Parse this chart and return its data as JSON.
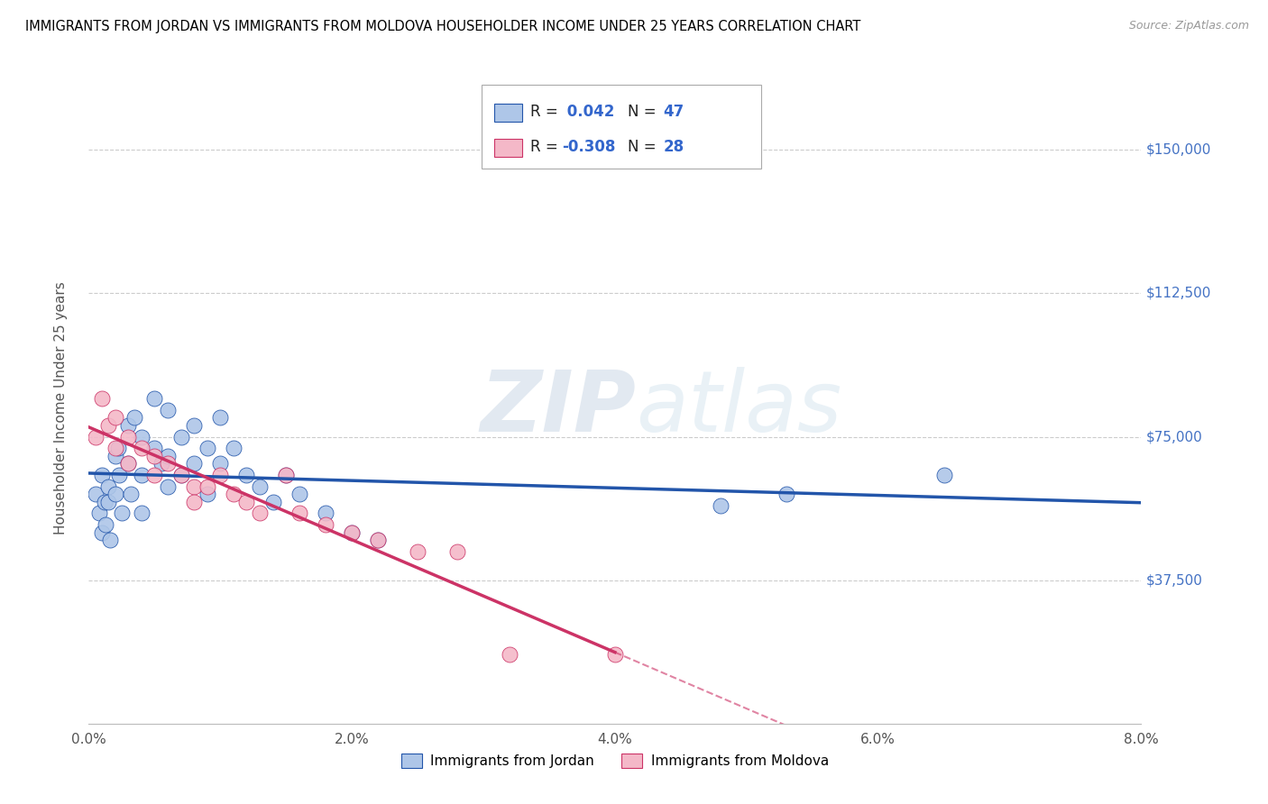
{
  "title": "IMMIGRANTS FROM JORDAN VS IMMIGRANTS FROM MOLDOVA HOUSEHOLDER INCOME UNDER 25 YEARS CORRELATION CHART",
  "source": "Source: ZipAtlas.com",
  "ylabel": "Householder Income Under 25 years",
  "xlim": [
    0.0,
    0.08
  ],
  "ylim": [
    0,
    165000
  ],
  "yticks": [
    0,
    37500,
    75000,
    112500,
    150000
  ],
  "ytick_labels": [
    "",
    "$37,500",
    "$75,000",
    "$112,500",
    "$150,000"
  ],
  "xtick_labels": [
    "0.0%",
    "2.0%",
    "4.0%",
    "6.0%",
    "8.0%"
  ],
  "xticks": [
    0.0,
    0.02,
    0.04,
    0.06,
    0.08
  ],
  "jordan_R": 0.042,
  "jordan_N": 47,
  "moldova_R": -0.308,
  "moldova_N": 28,
  "jordan_color": "#aec6e8",
  "moldova_color": "#f4b8c8",
  "jordan_line_color": "#2255aa",
  "moldova_line_color": "#cc3366",
  "watermark_zip": "ZIP",
  "watermark_atlas": "atlas",
  "legend_jordan_label": "Immigrants from Jordan",
  "legend_moldova_label": "Immigrants from Moldova",
  "jordan_x": [
    0.0005,
    0.0008,
    0.001,
    0.001,
    0.0012,
    0.0013,
    0.0015,
    0.0015,
    0.0016,
    0.002,
    0.002,
    0.0022,
    0.0023,
    0.0025,
    0.003,
    0.003,
    0.0032,
    0.0035,
    0.004,
    0.004,
    0.004,
    0.005,
    0.005,
    0.0055,
    0.006,
    0.006,
    0.006,
    0.007,
    0.007,
    0.008,
    0.008,
    0.009,
    0.009,
    0.01,
    0.01,
    0.011,
    0.012,
    0.013,
    0.014,
    0.015,
    0.016,
    0.018,
    0.02,
    0.022,
    0.048,
    0.053,
    0.065
  ],
  "jordan_y": [
    60000,
    55000,
    50000,
    65000,
    58000,
    52000,
    62000,
    58000,
    48000,
    70000,
    60000,
    72000,
    65000,
    55000,
    78000,
    68000,
    60000,
    80000,
    75000,
    65000,
    55000,
    85000,
    72000,
    68000,
    82000,
    70000,
    62000,
    75000,
    65000,
    78000,
    68000,
    72000,
    60000,
    80000,
    68000,
    72000,
    65000,
    62000,
    58000,
    65000,
    60000,
    55000,
    50000,
    48000,
    57000,
    60000,
    65000
  ],
  "moldova_x": [
    0.0005,
    0.001,
    0.0015,
    0.002,
    0.002,
    0.003,
    0.003,
    0.004,
    0.005,
    0.005,
    0.006,
    0.007,
    0.008,
    0.008,
    0.009,
    0.01,
    0.011,
    0.012,
    0.013,
    0.015,
    0.016,
    0.018,
    0.02,
    0.022,
    0.025,
    0.028,
    0.032,
    0.04
  ],
  "moldova_y": [
    75000,
    85000,
    78000,
    72000,
    80000,
    75000,
    68000,
    72000,
    70000,
    65000,
    68000,
    65000,
    62000,
    58000,
    62000,
    65000,
    60000,
    58000,
    55000,
    65000,
    55000,
    52000,
    50000,
    48000,
    45000,
    45000,
    18000,
    18000
  ]
}
